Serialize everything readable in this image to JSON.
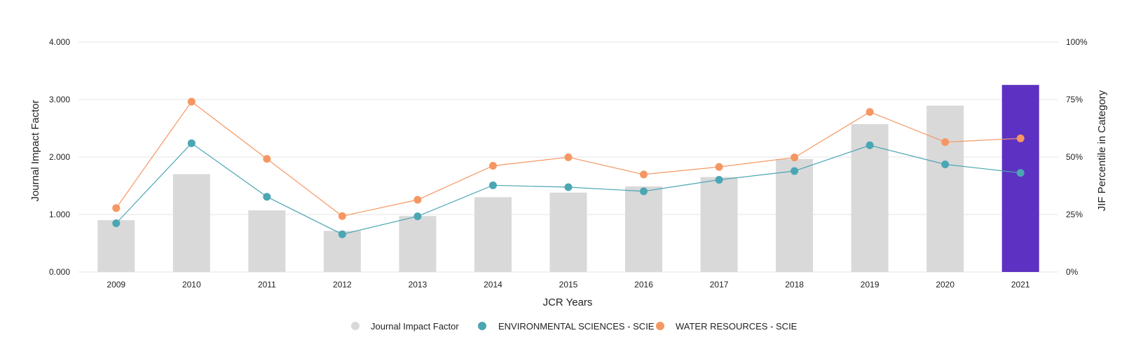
{
  "chart_data": {
    "type": "bar",
    "categories": [
      "2009",
      "2010",
      "2011",
      "2012",
      "2013",
      "2014",
      "2015",
      "2016",
      "2017",
      "2018",
      "2019",
      "2020",
      "2021"
    ],
    "highlight_category": "2021",
    "series": [
      {
        "name": "Journal Impact Factor",
        "type": "bar",
        "axis": "left",
        "color": "#d9d9d9",
        "highlight_color": "#5d31c1",
        "values": [
          0.901,
          1.702,
          1.072,
          0.716,
          0.973,
          1.301,
          1.381,
          1.489,
          1.652,
          1.965,
          2.572,
          2.894,
          3.254
        ]
      },
      {
        "name": "ENVIRONMENTAL SCIENCES - SCIE",
        "type": "line",
        "axis": "right",
        "color": "#4ba6b4",
        "values": [
          21.2,
          56.0,
          32.7,
          16.4,
          24.2,
          37.7,
          36.9,
          35.1,
          40.1,
          43.9,
          55.1,
          46.8,
          43.1
        ]
      },
      {
        "name": "WATER RESOURCES - SCIE",
        "type": "line",
        "axis": "right",
        "color": "#f59763",
        "values": [
          27.8,
          74.1,
          49.2,
          24.3,
          31.4,
          46.2,
          49.9,
          42.4,
          45.7,
          49.8,
          69.6,
          56.5,
          58.1
        ]
      }
    ],
    "xlabel": "JCR Years",
    "ylabel": "Journal Impact Factor",
    "ylabel_right": "JIF Percentile in Category",
    "ylim": [
      0,
      4
    ],
    "ylim_right": [
      0,
      100
    ],
    "yticks": [
      "0.000",
      "1.000",
      "2.000",
      "3.000",
      "4.000"
    ],
    "yticks_right": [
      "0%",
      "25%",
      "50%",
      "75%",
      "100%"
    ],
    "grid": true,
    "legend_position": "bottom-center"
  }
}
